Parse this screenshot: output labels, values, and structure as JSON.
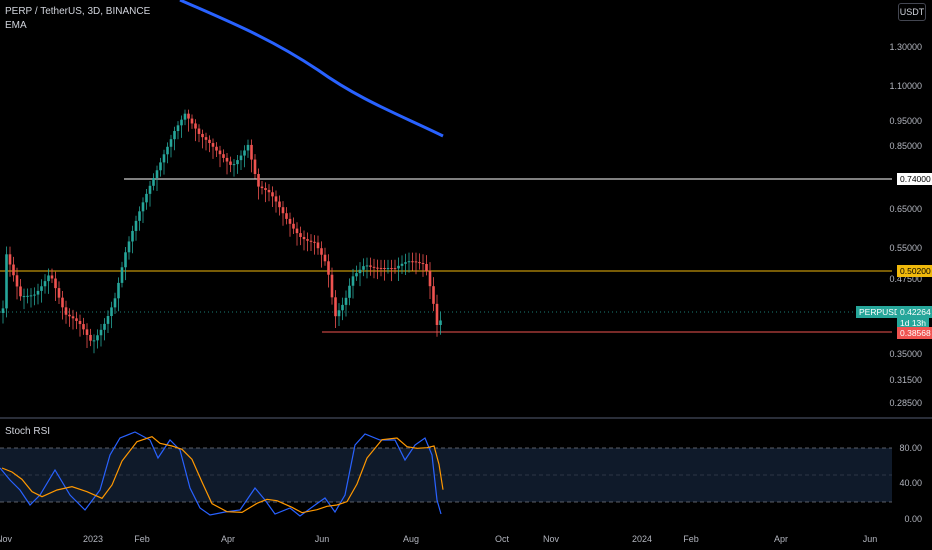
{
  "header": {
    "title": "PERP / TetherUS, 3D, BINANCE",
    "indicator": "EMA",
    "currency_button": "USDT"
  },
  "oscillator": {
    "title": "Stoch RSI"
  },
  "price_axis": [
    "1.30000",
    "1.10000",
    "0.95000",
    "0.85000",
    "0.65000",
    "0.55000",
    "0.47500",
    "0.35000",
    "0.31500",
    "0.28500"
  ],
  "osc_axis": [
    "80.00",
    "40.00",
    "0.00"
  ],
  "time_axis": [
    "Nov",
    "2023",
    "Feb",
    "Apr",
    "Jun",
    "Aug",
    "Oct",
    "Nov",
    "2024",
    "Feb",
    "Apr",
    "Jun"
  ],
  "levels": {
    "white": {
      "label": "0.74000",
      "color": "#ffffff"
    },
    "yellow": {
      "label": "0.50200",
      "color": "#f0b90b"
    },
    "red": {
      "label": "0.38568",
      "color": "#ef5350"
    }
  },
  "symbol_tag": {
    "name": "PERPUSDT",
    "price": "0.42264",
    "countdown": "1d 13h"
  },
  "colors": {
    "up": "#26a69a",
    "down": "#ef5350",
    "ema": "#2962ff",
    "k": "#2962ff",
    "d": "#ff9800"
  }
}
